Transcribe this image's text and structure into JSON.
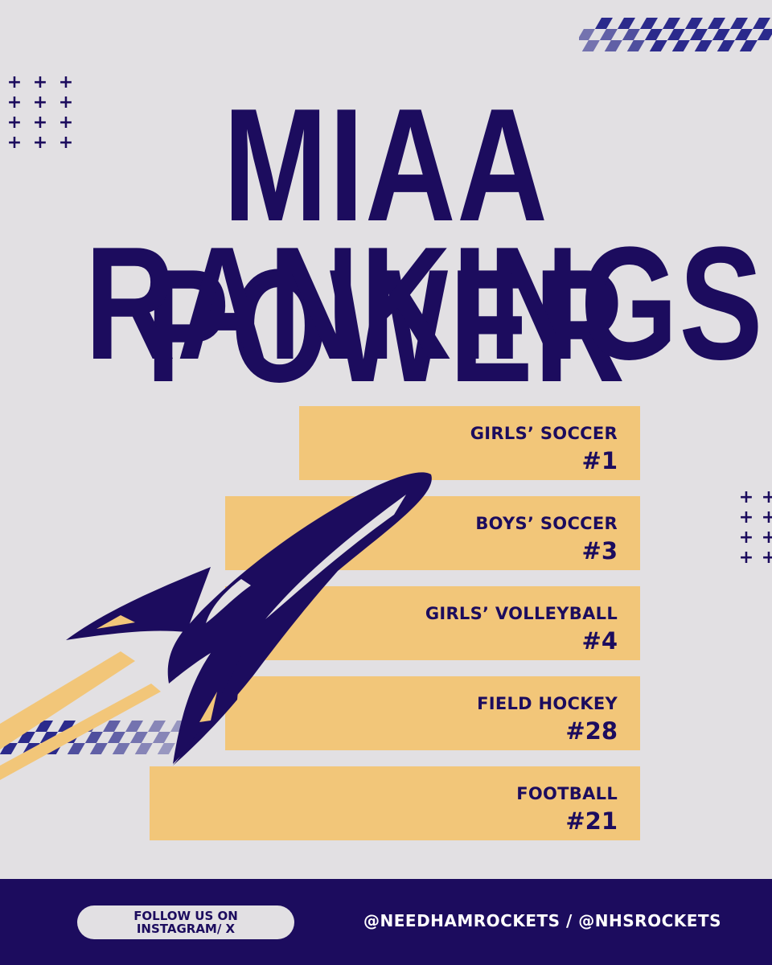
{
  "title": {
    "line1": "MIAA POWER",
    "line2": "RANKINGS"
  },
  "rankings": [
    {
      "sport": "GIRLS’ SOCCER",
      "rank": "#1"
    },
    {
      "sport": "BOYS’ SOCCER",
      "rank": "#3"
    },
    {
      "sport": "GIRLS’ VOLLEYBALL",
      "rank": "#4"
    },
    {
      "sport": "FIELD HOCKEY",
      "rank": "#28"
    },
    {
      "sport": "FOOTBALL",
      "rank": "#21"
    }
  ],
  "footer": {
    "follow_label": "FOLLOW US ON\nINSTAGRAM/ X",
    "handles": "@NEEDHAMROCKETS / @NHSROCKETS"
  },
  "icons": {
    "decor_plus": "plus-icon",
    "mascot": "rocket-icon",
    "checker": "checkered-ribbon-icon"
  },
  "colors": {
    "background": "#e2e0e3",
    "navy": "#1c0c5e",
    "gold": "#f2c679",
    "footer_text": "#ffffff"
  }
}
